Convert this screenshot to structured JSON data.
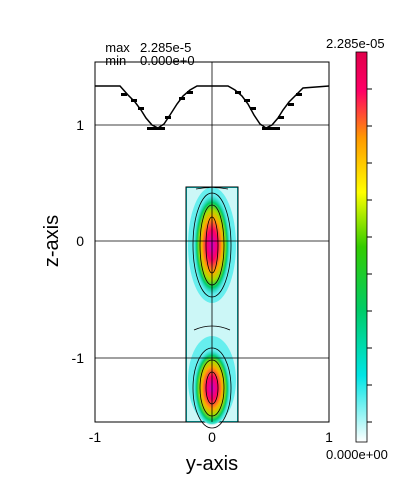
{
  "stats": {
    "max_label": "max",
    "max_value": "2.285e-5",
    "min_label": "min",
    "min_value": "0.000e+0"
  },
  "chart_data": {
    "type": "heatmap",
    "xlabel": "y-axis",
    "ylabel": "z-axis",
    "xlim": [
      -1,
      1
    ],
    "ylim": [
      -1.55,
      1.55
    ],
    "xticks": [
      "-1",
      "0",
      "1"
    ],
    "yticks": [
      "1",
      "0",
      "-1"
    ],
    "grid": true,
    "colorbar": {
      "max_label": "2.285e-05",
      "min_label": "0.000e+00",
      "min": 0,
      "max": 2.285e-05,
      "colormap": [
        "#ffffff",
        "#00e5e5",
        "#00cc00",
        "#ffff00",
        "#ff9900",
        "#ff0066",
        "#cc00cc"
      ]
    },
    "field_region": {
      "y_range": [
        -0.22,
        0.22
      ],
      "z_range": [
        -1.55,
        0.47
      ]
    },
    "hotspots": [
      {
        "y": 0.0,
        "z": 0.05,
        "value": 2.285e-05
      },
      {
        "y": 0.0,
        "z": -0.2,
        "value": 2.2e-05
      },
      {
        "y": 0.0,
        "z": -1.3,
        "value": 2.1e-05
      }
    ]
  }
}
